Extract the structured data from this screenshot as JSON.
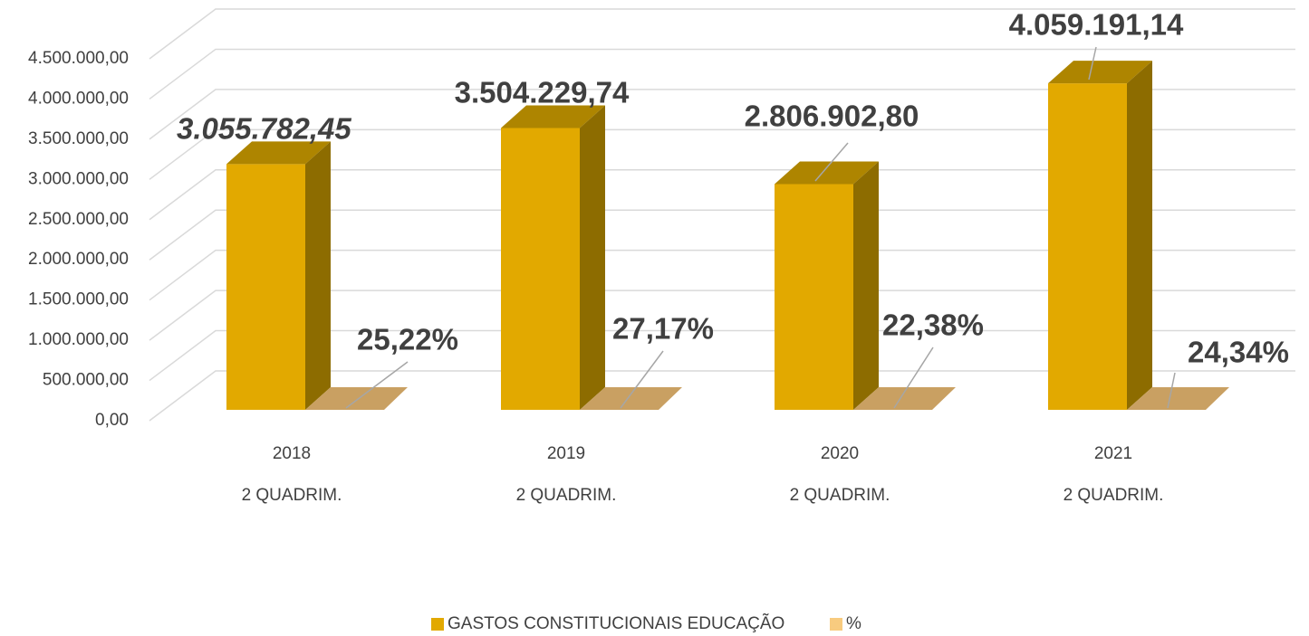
{
  "chart_data": {
    "type": "bar3d",
    "categories": [
      [
        "2018",
        "2 QUADRIM."
      ],
      [
        "2019",
        "2 QUADRIM."
      ],
      [
        "2020",
        "2 QUADRIM."
      ],
      [
        "2021",
        "2 QUADRIM."
      ]
    ],
    "series": [
      {
        "name": "GASTOS CONSTITUCIONAIS EDUCAÇÃO",
        "color": "#e2a900",
        "values": [
          3055782.45,
          3504229.74,
          2806902.8,
          4059191.14
        ],
        "value_labels": [
          "3.055.782,45",
          "3.504.229,74",
          "2.806.902,80",
          "4.059.191,14"
        ]
      },
      {
        "name": "%",
        "color": "#f8cb7f",
        "values": [
          0.2522,
          0.2717,
          0.2238,
          0.2434
        ],
        "value_labels": [
          "25,22%",
          "27,17%",
          "22,38%",
          "24,34%"
        ]
      }
    ],
    "ylim": [
      0,
      4500000
    ],
    "yticks": [
      {
        "value": 0,
        "label": "0,00"
      },
      {
        "value": 500000,
        "label": "500.000,00"
      },
      {
        "value": 1000000,
        "label": "1.000.000,00"
      },
      {
        "value": 1500000,
        "label": "1.500.000,00"
      },
      {
        "value": 2000000,
        "label": "2.000.000,00"
      },
      {
        "value": 2500000,
        "label": "2.500.000,00"
      },
      {
        "value": 3000000,
        "label": "3.000.000,00"
      },
      {
        "value": 3500000,
        "label": "3.500.000,00"
      },
      {
        "value": 4000000,
        "label": "4.000.000,00"
      },
      {
        "value": 4500000,
        "label": "4.500.000,00"
      }
    ],
    "grid": true
  }
}
